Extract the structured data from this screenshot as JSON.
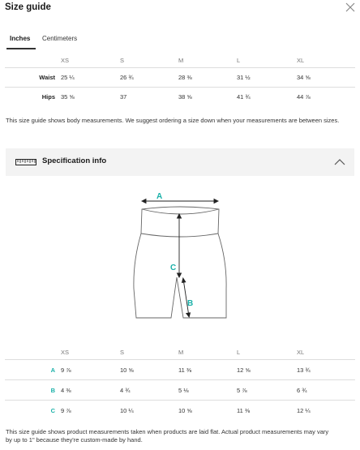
{
  "header": {
    "title": "Size guide",
    "close_icon": "close-icon"
  },
  "tabs": [
    {
      "label": "Inches",
      "active": true
    },
    {
      "label": "Centimeters",
      "active": false
    }
  ],
  "size_table": {
    "columns": [
      "",
      "XS",
      "S",
      "M",
      "L",
      "XL"
    ],
    "rows": [
      {
        "label": "Waist",
        "values": [
          "25 ¼",
          "26 ¾",
          "28 ⅜",
          "31 ½",
          "34 ⅝"
        ]
      },
      {
        "label": "Hips",
        "values": [
          "35 ⅝",
          "37",
          "38 ⅝",
          "41 ¾",
          "44 ⅞"
        ]
      }
    ]
  },
  "body_note": "This size guide shows body measurements. We suggest ordering a size down when your measurements are between sizes.",
  "spec_section": {
    "title": "Specification info",
    "icon": "ruler-icon",
    "toggle_icon": "chevron-up-icon",
    "expanded": true
  },
  "diagram": {
    "labels": [
      "A",
      "B",
      "C"
    ],
    "label_color": "#19b0a8"
  },
  "spec_table": {
    "columns": [
      "",
      "XS",
      "S",
      "M",
      "L",
      "XL"
    ],
    "rows": [
      {
        "label": "A",
        "values": [
          "9 ⅞",
          "10 ⅝",
          "11 ⅜",
          "12 ⅝",
          "13 ¾"
        ]
      },
      {
        "label": "B",
        "values": [
          "4 ⅜",
          "4 ¾",
          "5 ⅛",
          "5 ⅞",
          "6 ¾"
        ]
      },
      {
        "label": "C",
        "values": [
          "9 ⅞",
          "10 ¼",
          "10 ⅝",
          "11 ⅜",
          "12 ¼"
        ]
      }
    ]
  },
  "spec_note": "This size guide shows product measurements taken when products are laid flat. Actual product measurements may vary by up to 1\" because they're custom-made by hand."
}
